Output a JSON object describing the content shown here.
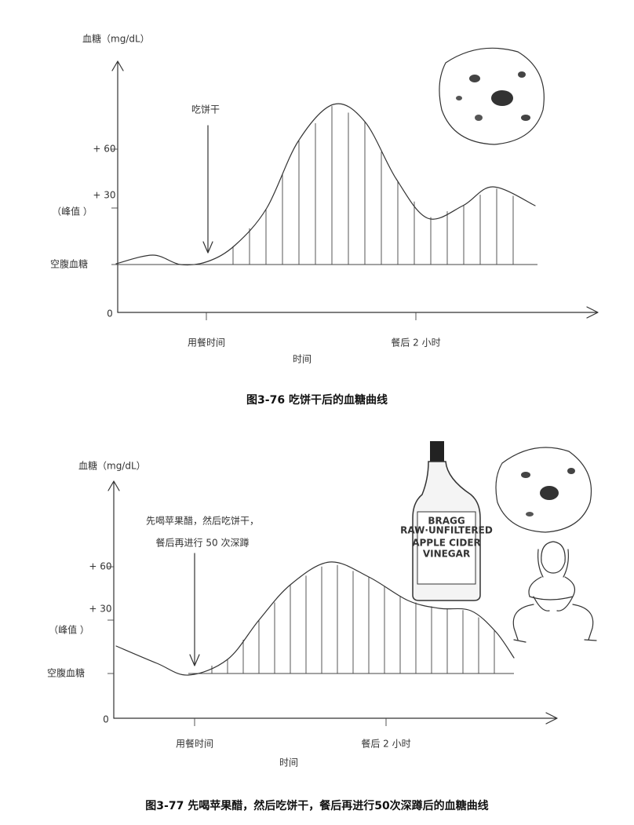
{
  "figures": [
    {
      "y_axis_label": "血糖（mg/dL）",
      "y_labels": [
        "+ 60",
        "+ 30",
        "（峰值 ）",
        "空腹血糖",
        "0"
      ],
      "annotation": [
        "吃饼干"
      ],
      "x_labels": [
        "用餐时间",
        "餐后 2 小时"
      ],
      "x_axis_label": "时间",
      "caption": "图3-76 吃饼干后的血糖曲线"
    },
    {
      "y_axis_label": "血糖（mg/dL）",
      "y_labels": [
        "+ 60",
        "+ 30",
        "（峰值 ）",
        "空腹血糖",
        "0"
      ],
      "annotation": [
        "先喝苹果醋，然后吃饼干，",
        "餐后再进行 50 次深蹲"
      ],
      "x_labels": [
        "用餐时间",
        "餐后 2 小时"
      ],
      "x_axis_label": "时间",
      "caption": "图3-77 先喝苹果醋，然后吃饼干，餐后再进行50次深蹲后的血糖曲线",
      "bottle_label": [
        "BRAGG",
        "RAW·UNFILTERED",
        "APPLE CIDER",
        "VINEGAR"
      ]
    }
  ]
}
